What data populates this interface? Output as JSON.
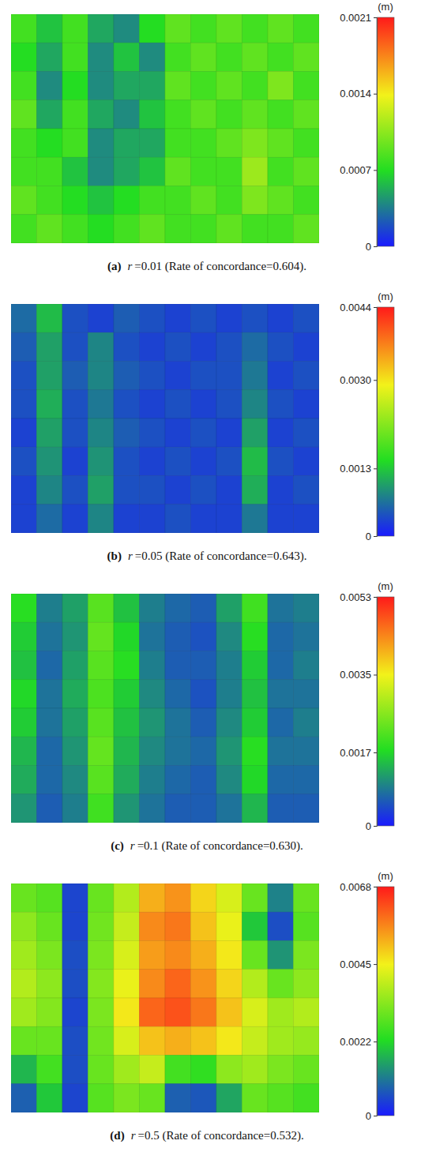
{
  "chart_data": [
    {
      "type": "heatmap",
      "caption": {
        "label": "(a)",
        "variable": "r",
        "text": "=0.01 (Rate of concordance=0.604)."
      },
      "cells": [
        [
          0.0008,
          0.0006,
          0.0008,
          0.0005,
          0.0004,
          0.0007,
          0.0009,
          0.0008,
          0.0009,
          0.0008,
          0.0009,
          0.0008
        ],
        [
          0.0007,
          0.0005,
          0.0008,
          0.0004,
          0.0006,
          0.0004,
          0.0008,
          0.0009,
          0.0008,
          0.0009,
          0.0008,
          0.0009
        ],
        [
          0.0008,
          0.0004,
          0.0007,
          0.0004,
          0.0005,
          0.0005,
          0.0009,
          0.0008,
          0.0009,
          0.0008,
          0.001,
          0.0008
        ],
        [
          0.0009,
          0.0005,
          0.0008,
          0.0005,
          0.0004,
          0.0006,
          0.0008,
          0.0009,
          0.0008,
          0.0009,
          0.0008,
          0.0009
        ],
        [
          0.0008,
          0.0007,
          0.0008,
          0.0004,
          0.0005,
          0.0005,
          0.0008,
          0.0008,
          0.0009,
          0.001,
          0.0009,
          0.0008
        ],
        [
          0.0008,
          0.0008,
          0.0006,
          0.0004,
          0.0005,
          0.0006,
          0.0009,
          0.0008,
          0.0008,
          0.0011,
          0.0008,
          0.0009
        ],
        [
          0.0009,
          0.0008,
          0.0007,
          0.0006,
          0.0007,
          0.0008,
          0.0008,
          0.0009,
          0.0008,
          0.001,
          0.0009,
          0.0008
        ],
        [
          0.0008,
          0.0009,
          0.0008,
          0.0007,
          0.0008,
          0.0009,
          0.0008,
          0.0008,
          0.0009,
          0.0008,
          0.0008,
          0.0009
        ]
      ],
      "colorbar": {
        "title": "(m)",
        "lim": [
          0,
          0.0021
        ],
        "ticks": [
          0,
          0.0007,
          0.0014,
          0.0021
        ]
      }
    },
    {
      "type": "heatmap",
      "caption": {
        "label": "(b)",
        "variable": "r",
        "text": "=0.05 (Rate of concordance=0.643)."
      },
      "cells": [
        [
          0.0006,
          0.0012,
          0.0004,
          0.0003,
          0.0005,
          0.0004,
          0.0003,
          0.0004,
          0.0003,
          0.0004,
          0.0003,
          0.0004
        ],
        [
          0.0005,
          0.001,
          0.0004,
          0.0008,
          0.0004,
          0.0003,
          0.0004,
          0.0003,
          0.0004,
          0.0006,
          0.0004,
          0.0003
        ],
        [
          0.0004,
          0.001,
          0.0005,
          0.0008,
          0.0005,
          0.0004,
          0.0003,
          0.0004,
          0.0004,
          0.0007,
          0.0003,
          0.0004
        ],
        [
          0.0004,
          0.0011,
          0.0004,
          0.0007,
          0.0004,
          0.0003,
          0.0004,
          0.0003,
          0.0004,
          0.0008,
          0.0004,
          0.0003
        ],
        [
          0.0003,
          0.001,
          0.0004,
          0.0008,
          0.0005,
          0.0004,
          0.0003,
          0.0004,
          0.0003,
          0.001,
          0.0003,
          0.0004
        ],
        [
          0.0004,
          0.0009,
          0.0003,
          0.0009,
          0.0004,
          0.0003,
          0.0004,
          0.0003,
          0.0004,
          0.0012,
          0.0004,
          0.0003
        ],
        [
          0.0003,
          0.0008,
          0.0004,
          0.001,
          0.0004,
          0.0004,
          0.0003,
          0.0004,
          0.0003,
          0.0011,
          0.0003,
          0.0004
        ],
        [
          0.0003,
          0.0006,
          0.0003,
          0.0008,
          0.0003,
          0.0003,
          0.0004,
          0.0003,
          0.0003,
          0.0007,
          0.0003,
          0.0003
        ]
      ],
      "colorbar": {
        "title": "(m)",
        "lim": [
          0,
          0.0044
        ],
        "ticks": [
          0,
          0.0013,
          {
            "value": 0.003,
            "label": "0.0030"
          },
          0.0044
        ]
      }
    },
    {
      "type": "heatmap",
      "caption": {
        "label": "(c)",
        "variable": "r",
        "text": "=0.1 (Rate of concordance=0.630)."
      },
      "cells": [
        [
          0.0018,
          0.0009,
          0.0012,
          0.0022,
          0.0015,
          0.0009,
          0.0007,
          0.0006,
          0.0012,
          0.002,
          0.0008,
          0.0009
        ],
        [
          0.0016,
          0.0008,
          0.0011,
          0.0023,
          0.0017,
          0.0008,
          0.0006,
          0.0005,
          0.001,
          0.0018,
          0.0007,
          0.0008
        ],
        [
          0.0015,
          0.0007,
          0.0012,
          0.0022,
          0.0018,
          0.0009,
          0.0006,
          0.0006,
          0.0009,
          0.0016,
          0.0007,
          0.0009
        ],
        [
          0.0017,
          0.0008,
          0.0013,
          0.0021,
          0.0016,
          0.001,
          0.0007,
          0.0005,
          0.0009,
          0.0015,
          0.0008,
          0.0008
        ],
        [
          0.0016,
          0.0008,
          0.0012,
          0.0022,
          0.0015,
          0.0011,
          0.0008,
          0.0006,
          0.001,
          0.0016,
          0.0007,
          0.0009
        ],
        [
          0.0014,
          0.0007,
          0.0011,
          0.0023,
          0.0014,
          0.001,
          0.0008,
          0.0007,
          0.0011,
          0.0018,
          0.0008,
          0.0008
        ],
        [
          0.0013,
          0.0007,
          0.001,
          0.0022,
          0.0013,
          0.0009,
          0.0007,
          0.0006,
          0.001,
          0.0017,
          0.0007,
          0.0007
        ],
        [
          0.0011,
          0.0006,
          0.0009,
          0.002,
          0.0011,
          0.0008,
          0.0006,
          0.0006,
          0.0008,
          0.0014,
          0.0006,
          0.0006
        ]
      ],
      "colorbar": {
        "title": "(m)",
        "lim": [
          0,
          0.0053
        ],
        "ticks": [
          0,
          0.0017,
          0.0035,
          0.0053
        ]
      }
    },
    {
      "type": "heatmap",
      "caption": {
        "label": "(d)",
        "variable": "r",
        "text": "=0.5 (Rate of concordance=0.532)."
      },
      "cells": [
        [
          0.003,
          0.0028,
          0.0005,
          0.003,
          0.0038,
          0.0052,
          0.0055,
          0.0048,
          0.0042,
          0.003,
          0.0012,
          0.003
        ],
        [
          0.0034,
          0.003,
          0.0005,
          0.0031,
          0.004,
          0.0056,
          0.0058,
          0.005,
          0.0044,
          0.002,
          0.0006,
          0.0028
        ],
        [
          0.0036,
          0.0032,
          0.0006,
          0.0032,
          0.0042,
          0.0054,
          0.0056,
          0.0052,
          0.0046,
          0.003,
          0.0014,
          0.0032
        ],
        [
          0.0038,
          0.0034,
          0.0006,
          0.0033,
          0.0044,
          0.0056,
          0.006,
          0.0055,
          0.0048,
          0.0038,
          0.003,
          0.0034
        ],
        [
          0.0036,
          0.0033,
          0.0005,
          0.0032,
          0.0046,
          0.006,
          0.0062,
          0.0058,
          0.005,
          0.0042,
          0.0036,
          0.0038
        ],
        [
          0.003,
          0.003,
          0.0006,
          0.0031,
          0.0042,
          0.005,
          0.0052,
          0.005,
          0.0046,
          0.004,
          0.0036,
          0.0035
        ],
        [
          0.0018,
          0.0026,
          0.0006,
          0.003,
          0.0036,
          0.004,
          0.0026,
          0.0024,
          0.0034,
          0.0036,
          0.0032,
          0.003
        ],
        [
          0.0008,
          0.002,
          0.0005,
          0.0028,
          0.0032,
          0.003,
          0.0008,
          0.0007,
          0.0016,
          0.003,
          0.0028,
          0.0026
        ]
      ],
      "colorbar": {
        "title": "(m)",
        "lim": [
          0,
          0.0068
        ],
        "ticks": [
          0,
          0.0022,
          0.0045,
          0.0068
        ]
      }
    }
  ]
}
